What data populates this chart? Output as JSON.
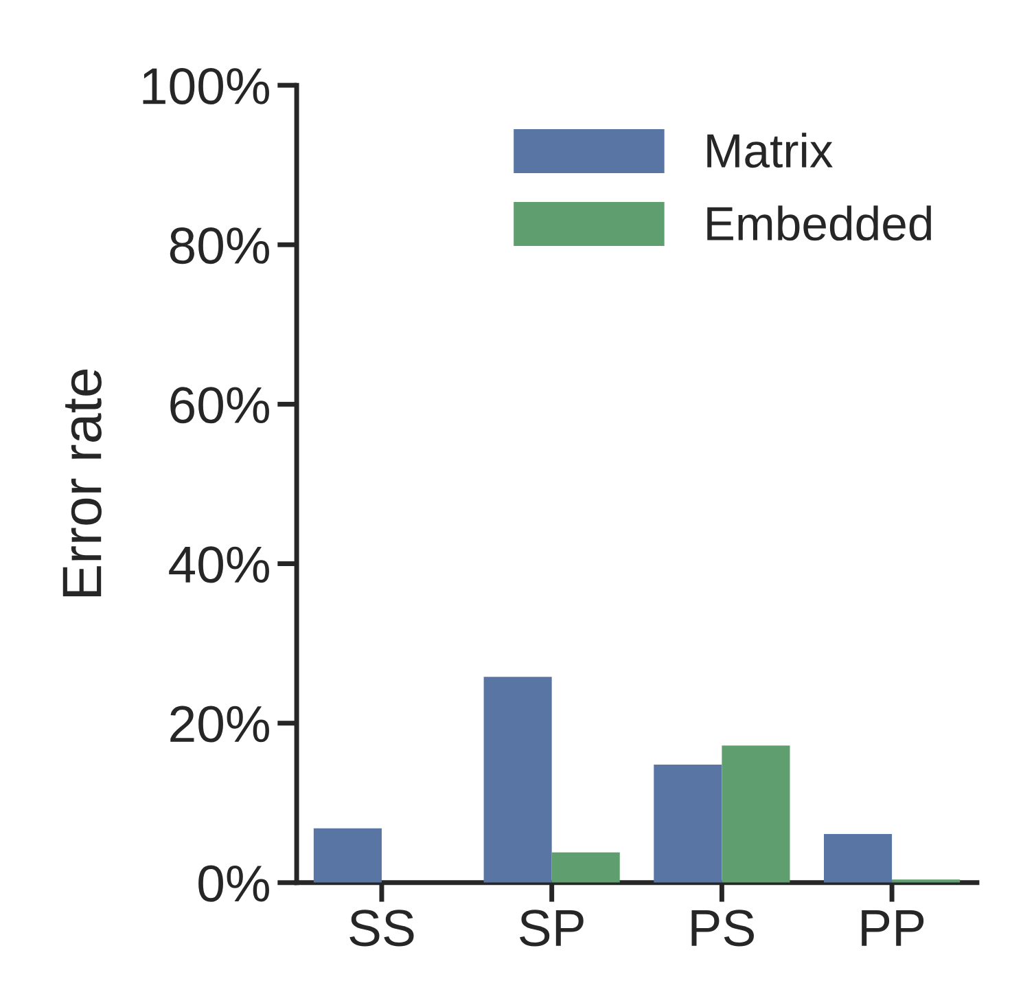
{
  "chart_data": {
    "type": "bar",
    "ylabel": "Error rate",
    "categories": [
      "SS",
      "SP",
      "PS",
      "PP"
    ],
    "series": [
      {
        "name": "Matrix",
        "color": "#5875a4",
        "values": [
          6.8,
          25.8,
          14.8,
          6.1
        ]
      },
      {
        "name": "Embedded",
        "color": "#5f9e6e",
        "values": [
          null,
          3.8,
          17.2,
          0.4
        ]
      }
    ],
    "ylim": [
      0,
      100
    ],
    "yticks": [
      {
        "value": 0,
        "label": "0%"
      },
      {
        "value": 20,
        "label": "20%"
      },
      {
        "value": 40,
        "label": "40%"
      },
      {
        "value": 60,
        "label": "60%"
      },
      {
        "value": 80,
        "label": "80%"
      },
      {
        "value": 100,
        "label": "100%"
      }
    ],
    "grid": false,
    "legend": "top right"
  }
}
